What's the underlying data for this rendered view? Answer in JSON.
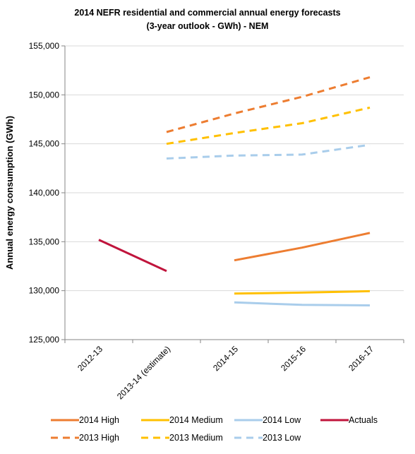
{
  "chart_data": {
    "type": "line",
    "title_lines": [
      "2014  NEFR residential and commercial annual energy forecasts",
      "(3-year outlook - GWh) - NEM"
    ],
    "ylabel": "Annual energy consumption (GWh)",
    "xlabel": "",
    "categories": [
      "2012-13",
      "2013-14 (estimate)",
      "2014-15",
      "2015-16",
      "2016-17"
    ],
    "ylim": [
      125000,
      155000
    ],
    "yticks": [
      125000,
      130000,
      135000,
      140000,
      145000,
      150000,
      155000
    ],
    "ytick_labels": [
      "125,000",
      "130,000",
      "135,000",
      "140,000",
      "145,000",
      "150,000",
      "155,000"
    ],
    "grid": true,
    "legend_position": "bottom",
    "series": [
      {
        "name": "2014 High",
        "color": "#ED7D31",
        "dashed": false,
        "values": [
          null,
          null,
          133100,
          134400,
          135900
        ]
      },
      {
        "name": "2014 Medium",
        "color": "#FFC000",
        "dashed": false,
        "values": [
          null,
          null,
          129700,
          129800,
          129950
        ]
      },
      {
        "name": "2014 Low",
        "color": "#A9CDEB",
        "dashed": false,
        "values": [
          null,
          null,
          128800,
          128550,
          128500
        ]
      },
      {
        "name": "Actuals",
        "color": "#C0143C",
        "dashed": false,
        "values": [
          135200,
          132000,
          null,
          null,
          null
        ]
      },
      {
        "name": "2013 High",
        "color": "#ED7D31",
        "dashed": true,
        "values": [
          null,
          146200,
          148100,
          149800,
          151800
        ]
      },
      {
        "name": "2013 Medium",
        "color": "#FFC000",
        "dashed": true,
        "values": [
          null,
          145000,
          146100,
          147100,
          148700
        ]
      },
      {
        "name": "2013 Low",
        "color": "#A9CDEB",
        "dashed": true,
        "values": [
          null,
          143500,
          143800,
          143900,
          144900
        ]
      }
    ]
  }
}
